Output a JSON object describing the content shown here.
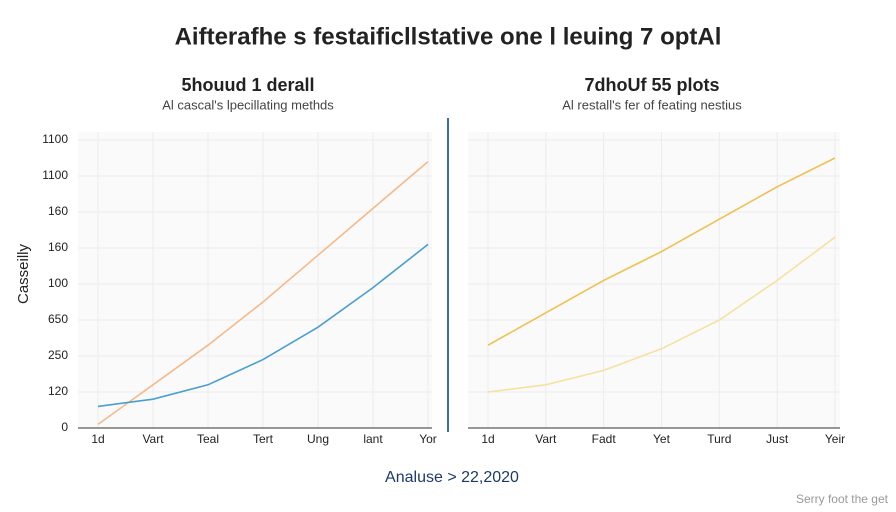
{
  "title": "Aifterafhe s festaificllstative one l leuing 7 optAl",
  "footer": "Analuse > 22,2020",
  "caption": "Serry foot the get",
  "chart_data": [
    {
      "type": "line",
      "title": "5houud 1 derall",
      "subtitle": "Al cascal's lpecillating methds",
      "ylabel": "Casseilly",
      "categories": [
        "1d",
        "Vart",
        "Teal",
        "Tert",
        "Ung",
        "lant",
        "Yor"
      ],
      "ycategories": [
        "0",
        "120",
        "250",
        "650",
        "100",
        "160",
        "160",
        "1100",
        "1100"
      ],
      "ylim": [
        0,
        8
      ],
      "grid": true,
      "series": [
        {
          "color": "#f5b98a",
          "values": [
            0.1,
            1.2,
            2.3,
            3.5,
            4.8,
            6.1,
            7.4
          ]
        },
        {
          "color": "#4a9fd0",
          "values": [
            0.6,
            0.8,
            1.2,
            1.9,
            2.8,
            3.9,
            5.1
          ]
        }
      ]
    },
    {
      "type": "line",
      "title": "7dhoUf 55 plots",
      "subtitle": "Al restall's fer of feating nestius",
      "categories": [
        "1d",
        "Vart",
        "Fadt",
        "Yet",
        "Turd",
        "Just",
        "Yeir"
      ],
      "ylim": [
        0,
        8
      ],
      "grid": true,
      "series": [
        {
          "color": "#f0c050",
          "values": [
            2.3,
            3.2,
            4.1,
            4.9,
            5.8,
            6.7,
            7.5
          ]
        },
        {
          "color": "#f8e0a0",
          "values": [
            1.0,
            1.2,
            1.6,
            2.2,
            3.0,
            4.1,
            5.3
          ]
        }
      ]
    }
  ]
}
